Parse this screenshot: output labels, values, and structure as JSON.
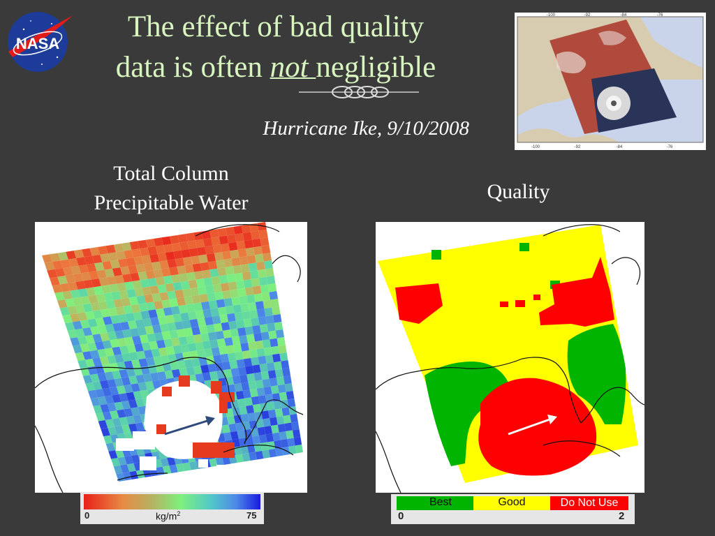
{
  "slide": {
    "title_line1": "The effect of bad quality",
    "title_line2_prefix": "data is often ",
    "title_emphasis": "not ",
    "title_line2_suffix": "negligible",
    "subtitle": "Hurricane Ike, 9/10/2008",
    "logo_text": "NASA"
  },
  "inset_map": {
    "top_ticks": [
      "-100",
      "-92",
      "-84",
      "-76"
    ],
    "bottom_ticks": [
      "-100",
      "-92",
      "-84",
      "-76"
    ]
  },
  "left_panel": {
    "label_line1": "Total Column",
    "label_line2": "Precipitable Water",
    "colorbar": {
      "min_label": "0",
      "max_label": "75",
      "unit_prefix": "kg/m",
      "unit_sup": "2"
    }
  },
  "right_panel": {
    "label": "Quality",
    "legend": {
      "best": "Best",
      "good": "Good",
      "do_not_use": "Do Not Use",
      "min_label": "0",
      "max_label": "2"
    }
  },
  "colors": {
    "background": "#3a3a3a",
    "title": "#d8f5c0",
    "best": "#00b400",
    "good": "#ffff00",
    "do_not_use": "#ff0000",
    "arrow_left": "#2e4a7a",
    "arrow_right": "#ffffff"
  },
  "icons": [
    "nasa-logo-icon",
    "flourish-divider-icon",
    "arrow-icon"
  ]
}
